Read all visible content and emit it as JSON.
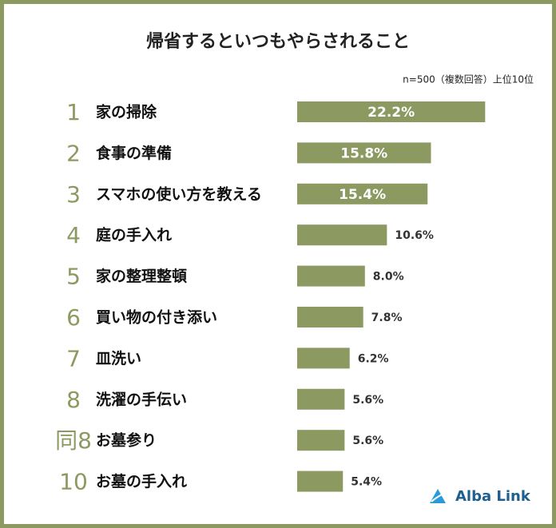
{
  "chart_data": {
    "type": "hbar",
    "title": "帰省するといつもやらされること",
    "note": "n=500（複数回答）上位10位",
    "ranks": [
      "1",
      "2",
      "3",
      "4",
      "5",
      "6",
      "7",
      "8",
      "同8",
      "10"
    ],
    "categories": [
      "家の掃除",
      "食事の準備",
      "スマホの使い方を教える",
      "庭の手入れ",
      "家の整理整頓",
      "買い物の付き添い",
      "皿洗い",
      "洗濯の手伝い",
      "お墓参り",
      "お墓の手入れ"
    ],
    "values": [
      22.2,
      15.8,
      15.4,
      10.6,
      8.0,
      7.8,
      6.2,
      5.6,
      5.6,
      5.4
    ],
    "value_labels": [
      "22.2%",
      "15.8%",
      "15.4%",
      "10.6%",
      "8.0%",
      "7.8%",
      "6.2%",
      "5.6%",
      "5.6%",
      "5.4%"
    ],
    "color": "#8c9a62"
  },
  "logo": "Alba Link"
}
